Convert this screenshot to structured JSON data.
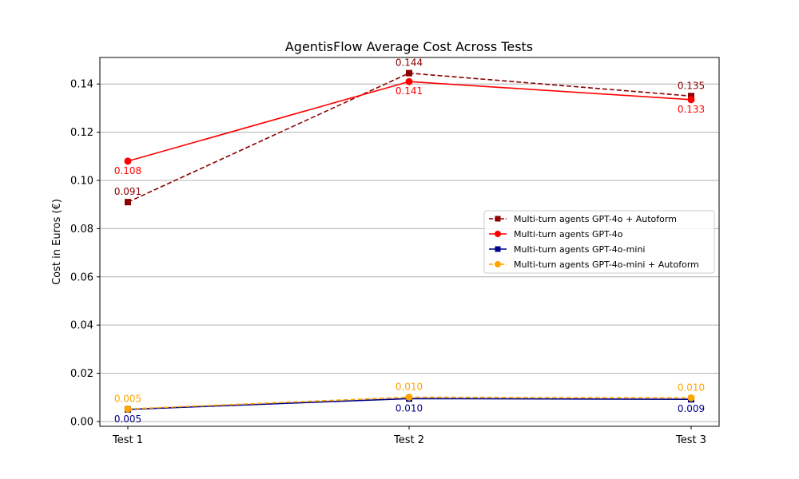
{
  "chart_data": {
    "type": "line",
    "title": "AgentisFlow Average Cost Across Tests",
    "xlabel": "",
    "ylabel": "Cost in Euros (€)",
    "categories": [
      "Test 1",
      "Test 2",
      "Test 3"
    ],
    "ylim": [
      -0.002,
      0.151
    ],
    "yticks": [
      0.0,
      0.02,
      0.04,
      0.06,
      0.08,
      0.1,
      0.12,
      0.14
    ],
    "ytick_labels": [
      "0.00",
      "0.02",
      "0.04",
      "0.06",
      "0.08",
      "0.10",
      "0.12",
      "0.14"
    ],
    "grid": "horizontal",
    "legend_position": "center-right",
    "series": [
      {
        "name": "Multi-turn agents GPT-4o + Autoform",
        "values": [
          0.091,
          0.1445,
          0.135
        ],
        "labels": [
          "0.091",
          "0.144",
          "0.135"
        ],
        "color": "#8b0000",
        "line_style": "dashed",
        "marker": "square",
        "label_position": "above"
      },
      {
        "name": "Multi-turn agents GPT-4o",
        "values": [
          0.108,
          0.141,
          0.1335
        ],
        "labels": [
          "0.108",
          "0.141",
          "0.133"
        ],
        "color": "#ff0000",
        "line_style": "solid",
        "marker": "circle",
        "label_position": "below"
      },
      {
        "name": "Multi-turn agents GPT-4o-mini",
        "values": [
          0.005,
          0.0095,
          0.0092
        ],
        "labels": [
          "0.005",
          "0.010",
          "0.009"
        ],
        "color": "#00008b",
        "line_style": "solid",
        "marker": "square",
        "label_position": "below"
      },
      {
        "name": "Multi-turn agents GPT-4o-mini + Autoform",
        "values": [
          0.0052,
          0.0101,
          0.0098
        ],
        "labels": [
          "0.005",
          "0.010",
          "0.010"
        ],
        "color": "#ffa500",
        "line_style": "dashed",
        "marker": "circle",
        "label_position": "above"
      }
    ]
  }
}
